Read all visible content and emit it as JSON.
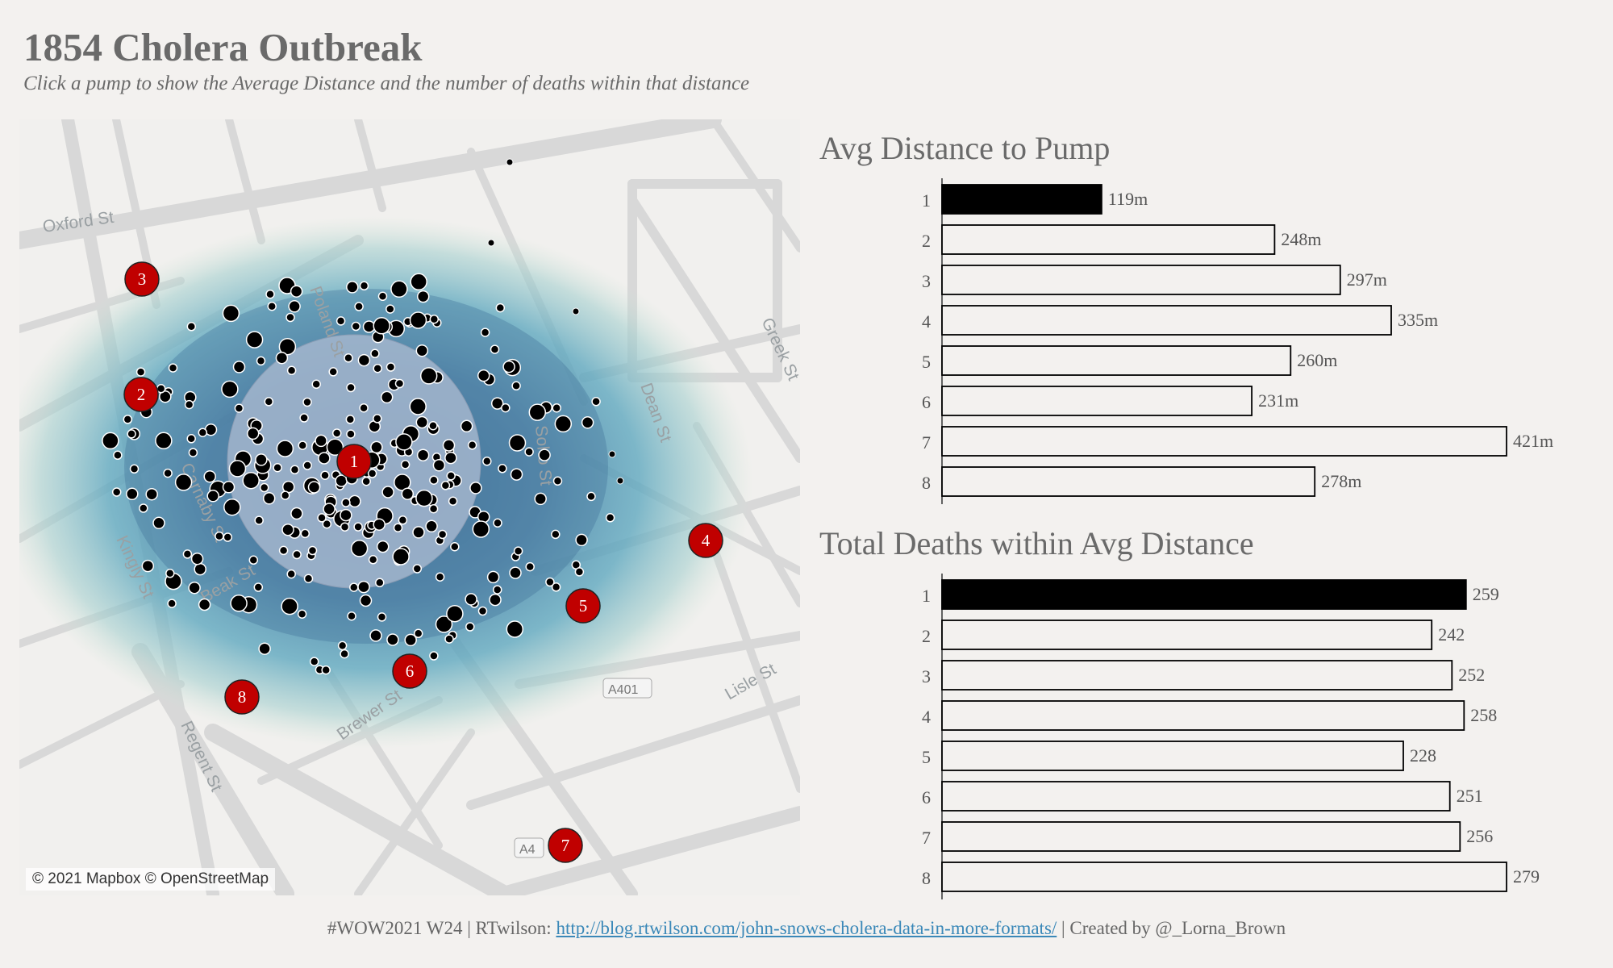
{
  "title": "1854 Cholera Outbreak",
  "subtitle": "Click a pump to show the Average Distance and the number of deaths within that distance",
  "map": {
    "attribution": "© 2021 Mapbox © OpenStreetMap",
    "street_labels": [
      "Oxford St",
      "Poland St",
      "Greek St",
      "Dean St",
      "Soho St",
      "Carnaby St",
      "Kingly St",
      "Beak St",
      "Brewer St",
      "Regent St",
      "Lisle St",
      "A401",
      "A4"
    ],
    "pumps": [
      "1",
      "2",
      "3",
      "4",
      "5",
      "6",
      "7",
      "8"
    ],
    "selected_pump": "1",
    "colors": {
      "pump": "#c00000",
      "heat_core": "#3e6f98",
      "heat_mid": "#5fa8bf",
      "heat_edge": "#cfe3d6",
      "selection_circle": "#a9b9cf",
      "deaths": "#000000"
    }
  },
  "chart_data": [
    {
      "type": "bar",
      "title": "Avg Distance to Pump",
      "categories": [
        "1",
        "2",
        "3",
        "4",
        "5",
        "6",
        "7",
        "8"
      ],
      "values": [
        119,
        248,
        297,
        335,
        260,
        231,
        421,
        278
      ],
      "labels": [
        "119m",
        "248m",
        "297m",
        "335m",
        "260m",
        "231m",
        "421m",
        "278m"
      ],
      "highlight": "1",
      "xlim": [
        0,
        421
      ]
    },
    {
      "type": "bar",
      "title": "Total Deaths within Avg Distance",
      "categories": [
        "1",
        "2",
        "3",
        "4",
        "5",
        "6",
        "7",
        "8"
      ],
      "values": [
        259,
        242,
        252,
        258,
        228,
        251,
        256,
        279
      ],
      "labels": [
        "259",
        "242",
        "252",
        "258",
        "228",
        "251",
        "256",
        "279"
      ],
      "highlight": "1",
      "xlim": [
        0,
        279
      ]
    }
  ],
  "footer": {
    "prefix": "#WOW2021 W24 | RTwilson: ",
    "link": "http://blog.rtwilson.com/john-snows-cholera-data-in-more-formats/",
    "suffix": " | Created by @_Lorna_Brown"
  }
}
